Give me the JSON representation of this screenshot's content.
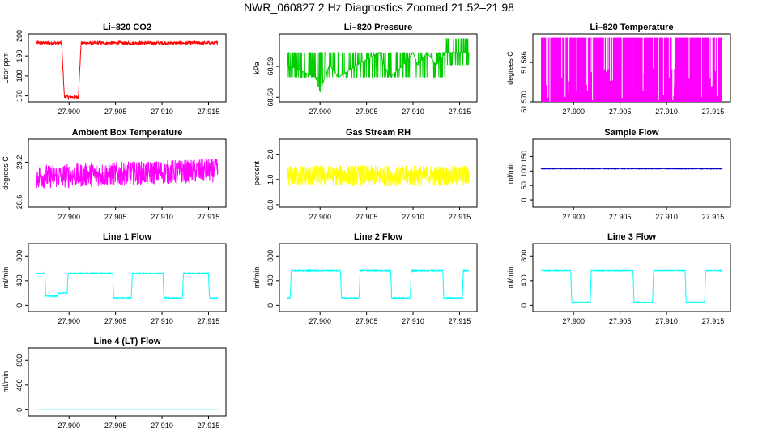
{
  "page": {
    "title": "NWR_060827  2 Hz Diagnostics Zoomed 21.52–21.98"
  },
  "x_axis": {
    "range": [
      27.8965,
      27.916
    ],
    "ticks": [
      27.9,
      27.905,
      27.91,
      27.915
    ],
    "tick_labels": [
      "27.900",
      "27.905",
      "27.910",
      "27.915"
    ]
  },
  "colors": {
    "red": "#ff0000",
    "green": "#00cc00",
    "magenta": "#ff00ff",
    "yellow": "#ffff00",
    "blue": "#0000cc",
    "cyan": "#00ffff"
  },
  "chart_data": [
    {
      "id": "co2",
      "type": "line",
      "title": "Li–820 CO2",
      "ylabel": "Licor ppm",
      "color": "#ff0000",
      "ylim": [
        167,
        201
      ],
      "yticks": [
        170,
        180,
        190,
        200
      ],
      "ytick_labels": [
        "170",
        "180",
        "190",
        "200"
      ],
      "noise": 0.8,
      "x": [
        27.8965,
        27.8992,
        27.8995,
        27.901,
        27.9013,
        27.916
      ],
      "y": [
        196.5,
        196.5,
        169.5,
        169.5,
        196.5,
        196.5
      ]
    },
    {
      "id": "pressure",
      "type": "line",
      "title": "Li–820 Pressure",
      "ylabel": "kPa",
      "color": "#00cc00",
      "ylim": [
        68.5785,
        68.6005
      ],
      "yticks": [
        68.58,
        68.59
      ],
      "ytick_labels": [
        "68.58",
        "68.59"
      ],
      "levels": [
        68.5815,
        68.5865,
        68.5905,
        68.5945,
        68.599
      ],
      "x": [
        27.8965,
        27.8995,
        27.9,
        27.9005,
        27.901,
        27.902,
        27.904,
        27.9063,
        27.9069,
        27.9075,
        27.909,
        27.91,
        27.9105,
        27.9115,
        27.9125,
        27.9135,
        27.916
      ],
      "y": [
        68.5905,
        68.5865,
        68.5815,
        68.5865,
        68.5905,
        68.5865,
        68.5905,
        68.5945,
        68.5905,
        68.5865,
        68.5905,
        68.5945,
        68.5905,
        68.5945,
        68.5905,
        68.5945,
        68.5945
      ]
    },
    {
      "id": "li820_temp",
      "type": "line",
      "title": "Li–820 Temperature",
      "ylabel": "degrees C",
      "color": "#ff00ff",
      "ylim": [
        51.57,
        51.5975
      ],
      "yticks": [
        51.57,
        51.586
      ],
      "ytick_labels": [
        "51.570",
        "51.586"
      ],
      "x": [
        27.8965,
        27.916
      ],
      "y": [
        51.596,
        51.596
      ]
    },
    {
      "id": "ambient_temp",
      "type": "line",
      "title": "Ambient Box Temperature",
      "ylabel": "degrees C",
      "color": "#ff00ff",
      "ylim": [
        28.52,
        29.55
      ],
      "yticks": [
        28.6,
        29.2
      ],
      "ytick_labels": [
        "28.6",
        "29.2"
      ],
      "noise": 0.13,
      "x": [
        27.8965,
        27.916
      ],
      "y": [
        28.98,
        29.08
      ]
    },
    {
      "id": "gas_rh",
      "type": "line",
      "title": "Gas Stream RH",
      "ylabel": "percent",
      "color": "#ffff00",
      "ylim": [
        -0.1,
        2.6
      ],
      "yticks": [
        0.0,
        1.0,
        2.0
      ],
      "ytick_labels": [
        "0.0",
        "1.0",
        "2.0"
      ],
      "noise": 0.3,
      "x": [
        27.8965,
        27.916
      ],
      "y": [
        1.15,
        1.15
      ]
    },
    {
      "id": "sample_flow",
      "type": "line",
      "title": "Sample Flow",
      "ylabel": "ml/min",
      "color": "#0000cc",
      "ylim": [
        -25,
        210
      ],
      "yticks": [
        0,
        50,
        100,
        150
      ],
      "ytick_labels": [
        "0",
        "50",
        "100",
        "150"
      ],
      "noise": 1.2,
      "x": [
        27.8965,
        27.916
      ],
      "y": [
        108,
        108
      ]
    },
    {
      "id": "line1_flow",
      "type": "line",
      "title": "Line 1 Flow",
      "ylabel": "ml/min",
      "color": "#00ffff",
      "ylim": [
        -100,
        1000
      ],
      "yticks": [
        0,
        400,
        800
      ],
      "ytick_labels": [
        "0",
        "400",
        "800"
      ],
      "noise": 8,
      "x": [
        27.8965,
        27.8974,
        27.8975,
        27.8988,
        27.8989,
        27.8998,
        27.8999,
        27.9047,
        27.9048,
        27.9067,
        27.9068,
        27.9101,
        27.9102,
        27.9122,
        27.9123,
        27.915,
        27.9151,
        27.916
      ],
      "y": [
        520,
        520,
        150,
        150,
        200,
        200,
        520,
        520,
        120,
        120,
        520,
        520,
        120,
        120,
        520,
        520,
        120,
        120
      ]
    },
    {
      "id": "line2_flow",
      "type": "line",
      "title": "Line 2 Flow",
      "ylabel": "ml/min",
      "color": "#00ffff",
      "ylim": [
        -100,
        1000
      ],
      "yticks": [
        0,
        400,
        800
      ],
      "ytick_labels": [
        "0",
        "400",
        "800"
      ],
      "noise": 8,
      "x": [
        27.8965,
        27.8968,
        27.8969,
        27.9022,
        27.9023,
        27.9042,
        27.9043,
        27.9076,
        27.9077,
        27.9097,
        27.9098,
        27.9132,
        27.9133,
        27.9153,
        27.9154,
        27.916
      ],
      "y": [
        120,
        120,
        560,
        560,
        120,
        120,
        560,
        560,
        120,
        120,
        560,
        560,
        120,
        120,
        560,
        560
      ]
    },
    {
      "id": "line3_flow",
      "type": "line",
      "title": "Line 3 Flow",
      "ylabel": "ml/min",
      "color": "#00ffff",
      "ylim": [
        -100,
        1000
      ],
      "yticks": [
        0,
        400,
        800
      ],
      "ytick_labels": [
        "0",
        "400",
        "800"
      ],
      "noise": 6,
      "x": [
        27.8965,
        27.8997,
        27.8998,
        27.9018,
        27.9019,
        27.9064,
        27.9065,
        27.9085,
        27.9086,
        27.912,
        27.9121,
        27.9141,
        27.9142,
        27.916
      ],
      "y": [
        560,
        560,
        50,
        50,
        560,
        560,
        50,
        50,
        560,
        560,
        50,
        50,
        560,
        560
      ]
    },
    {
      "id": "line4_flow",
      "type": "line",
      "title": "Line 4 (LT) Flow",
      "ylabel": "ml/min",
      "color": "#00ffff",
      "ylim": [
        -100,
        1000
      ],
      "yticks": [
        0,
        400,
        800
      ],
      "ytick_labels": [
        "0",
        "400",
        "800"
      ],
      "noise": 0,
      "x": [
        27.8965,
        27.916
      ],
      "y": [
        8,
        8
      ]
    }
  ]
}
